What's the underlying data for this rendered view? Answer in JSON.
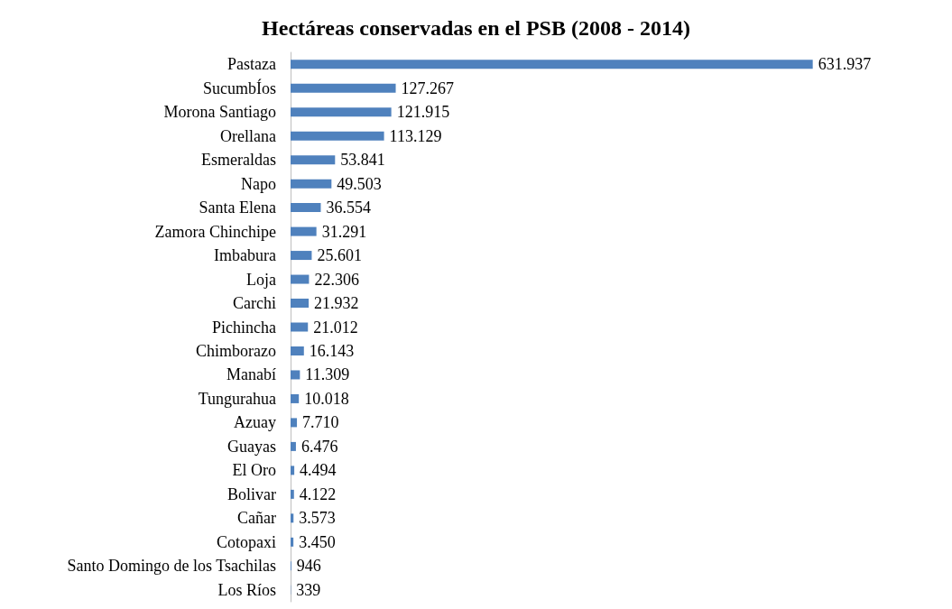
{
  "chart_data": {
    "type": "bar",
    "orientation": "horizontal",
    "title": "Hectáreas conservadas en el PSB (2008 - 2014)",
    "categories": [
      "Pastaza",
      "SucumbÍos",
      "Morona Santiago",
      "Orellana",
      "Esmeraldas",
      "Napo",
      "Santa Elena",
      "Zamora Chinchipe",
      "Imbabura",
      "Loja",
      "Carchi",
      "Pichincha",
      "Chimborazo",
      "Manabí",
      "Tungurahua",
      "Azuay",
      "Guayas",
      "El Oro",
      "Bolivar",
      "Cañar",
      "Cotopaxi",
      "Santo Domingo de los Tsachilas",
      "Los Ríos"
    ],
    "values": [
      631937,
      127267,
      121915,
      113129,
      53841,
      49503,
      36554,
      31291,
      25601,
      22306,
      21932,
      21012,
      16143,
      11309,
      10018,
      7710,
      6476,
      4494,
      4122,
      3573,
      3450,
      946,
      339
    ],
    "value_labels": [
      "631.937",
      "127.267",
      "121.915",
      "113.129",
      "53.841",
      "49.503",
      "36.554",
      "31.291",
      "25.601",
      "22.306",
      "21.932",
      "21.012",
      "16.143",
      "11.309",
      "10.018",
      "7.710",
      "6.476",
      "4.494",
      "4.122",
      "3.573",
      "3.450",
      "946",
      "339"
    ],
    "color": "#4f81bd"
  }
}
